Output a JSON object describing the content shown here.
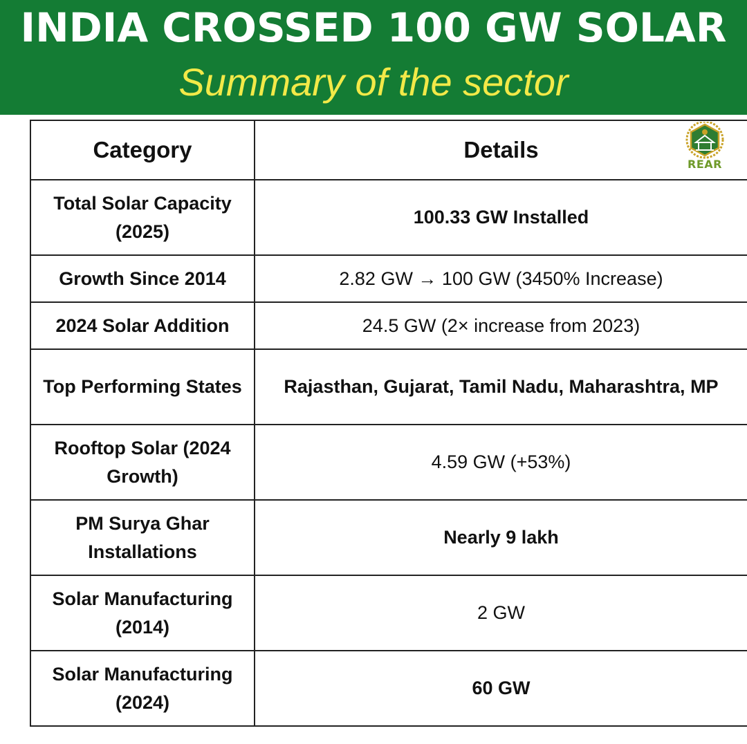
{
  "header": {
    "title": "INDIA CROSSED 100 GW SOLAR",
    "subtitle": "Summary of the sector"
  },
  "logo": {
    "text": "REAR",
    "icon": "solar-house-hexagon-logo"
  },
  "table": {
    "headers": [
      "Category",
      "Details"
    ],
    "rows": [
      {
        "category": "Total Solar Capacity (2025)",
        "details": "100.33 GW Installed",
        "bold": true
      },
      {
        "category": "Growth Since 2014",
        "details": "2.82 GW → 100 GW (3450% Increase)",
        "bold": false
      },
      {
        "category": "2024 Solar Addition",
        "details": "24.5 GW (2× increase from 2023)",
        "bold": false
      },
      {
        "category": "Top Performing States",
        "details": "Rajasthan, Gujarat, Tamil Nadu, Maharashtra, MP",
        "bold": true
      },
      {
        "category": "Rooftop Solar (2024 Growth)",
        "details": "4.59 GW (+53%)",
        "bold": false
      },
      {
        "category": "PM Surya Ghar Installations",
        "details": "Nearly 9 lakh",
        "bold": true
      },
      {
        "category": "Solar Manufacturing (2014)",
        "details": "2 GW",
        "bold": false
      },
      {
        "category": "Solar Manufacturing (2024)",
        "details": "60 GW",
        "bold": true
      }
    ]
  },
  "colors": {
    "banner": "#147c34",
    "title": "#ffffff",
    "subtitle": "#f2e948",
    "logo_green": "#2e7d32",
    "logo_gold": "#c9a227"
  }
}
